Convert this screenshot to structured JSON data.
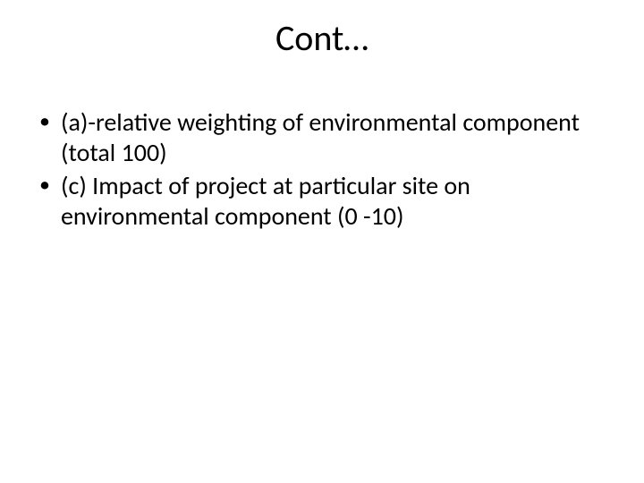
{
  "slide": {
    "title": "Cont…",
    "bullets": [
      "(a)-relative weighting of environmental component (total 100)",
      "(c) Impact of project at particular site on environmental component (0 -10)"
    ],
    "background_color": "#ffffff",
    "text_color": "#000000",
    "title_fontsize": 40,
    "body_fontsize": 28,
    "font_family": "Calibri"
  }
}
